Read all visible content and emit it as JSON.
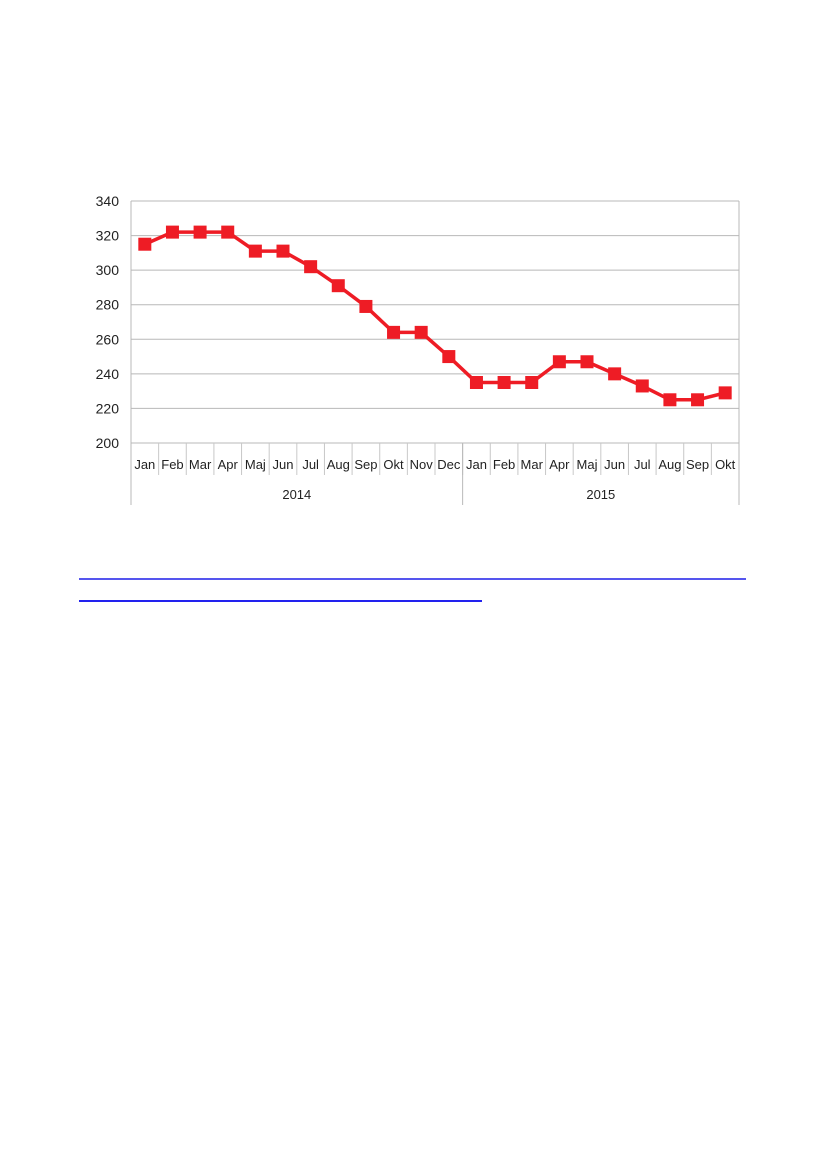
{
  "chart_data": {
    "type": "line",
    "title": "",
    "xlabel": "",
    "ylabel": "",
    "ylim": [
      200,
      340
    ],
    "yticks": [
      200,
      220,
      240,
      260,
      280,
      300,
      320,
      340
    ],
    "grid": true,
    "legend": "none",
    "marker": "square",
    "color": "#ee1c25",
    "groups": [
      {
        "label": "2014",
        "categories": [
          "Jan",
          "Feb",
          "Mar",
          "Apr",
          "Maj",
          "Jun",
          "Jul",
          "Aug",
          "Sep",
          "Okt",
          "Nov",
          "Dec"
        ]
      },
      {
        "label": "2015",
        "categories": [
          "Jan",
          "Feb",
          "Mar",
          "Apr",
          "Maj",
          "Jun",
          "Jul",
          "Aug",
          "Sep",
          "Okt"
        ]
      }
    ],
    "values": [
      315,
      322,
      322,
      322,
      311,
      311,
      302,
      291,
      279,
      264,
      264,
      250,
      235,
      235,
      235,
      247,
      247,
      240,
      233,
      225,
      225,
      229
    ]
  },
  "colors": {
    "link_rule": "#3333ee"
  }
}
